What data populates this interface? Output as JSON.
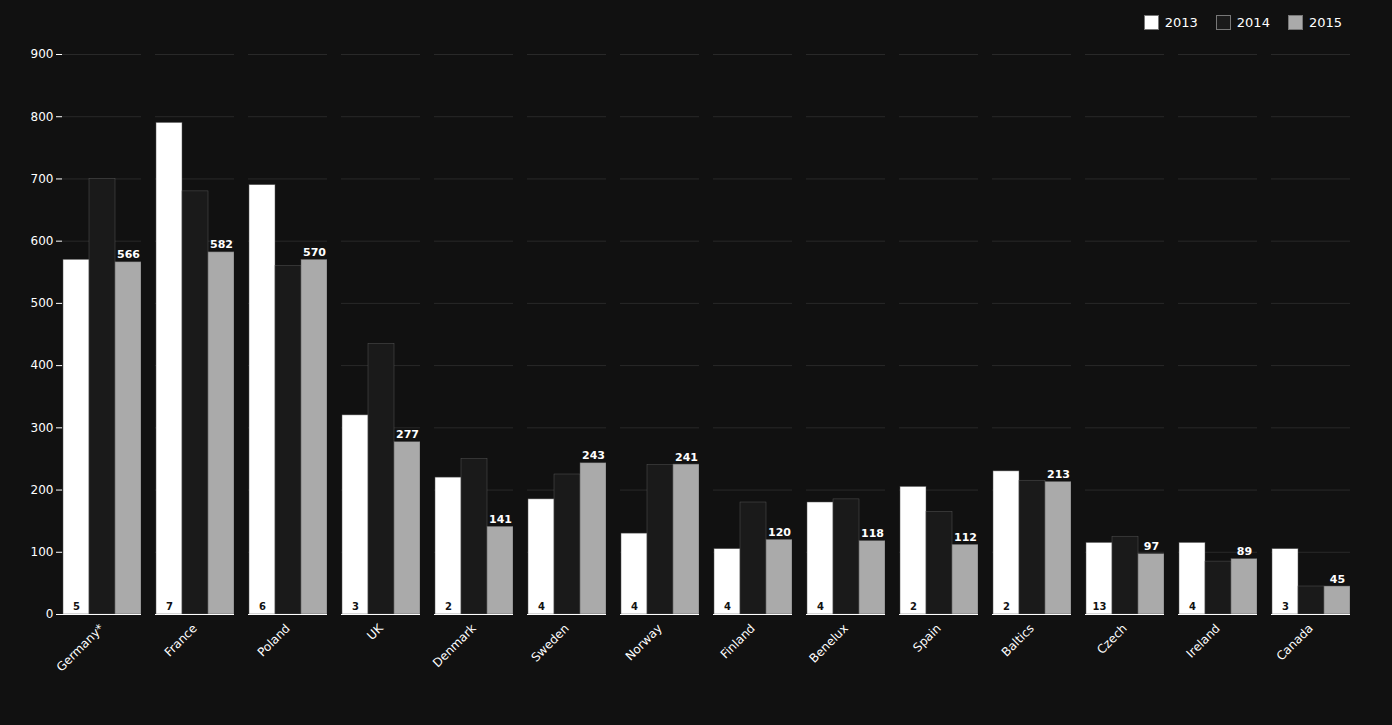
{
  "chart_data": {
    "type": "bar",
    "categories": [
      "Germany*",
      "France",
      "Poland",
      "UK",
      "Denmark",
      "Sweden",
      "Norway",
      "Finland",
      "Benelux",
      "Spain",
      "Baltics",
      "Czech",
      "Ireland",
      "Canada"
    ],
    "series": [
      {
        "name": "2013",
        "color": "#ffffff",
        "values": [
          570,
          790,
          690,
          320,
          220,
          185,
          130,
          105,
          180,
          205,
          230,
          115,
          115,
          105
        ]
      },
      {
        "name": "2014",
        "color": "#1a1a1a",
        "values": [
          700,
          680,
          560,
          435,
          250,
          225,
          240,
          180,
          185,
          165,
          215,
          125,
          85,
          45
        ]
      },
      {
        "name": "2015",
        "color": "#aaaaaa",
        "values": [
          566,
          582,
          570,
          277,
          141,
          243,
          241,
          120,
          118,
          112,
          213,
          97,
          89,
          45
        ],
        "data_labels": true
      }
    ],
    "ylim": [
      0,
      900
    ],
    "yticks": [
      0,
      100,
      200,
      300,
      400,
      500,
      600,
      700,
      800,
      900
    ],
    "grid": true,
    "legend": "upper right",
    "annotations": [
      {
        "x": "Germany*",
        "series": "2013",
        "y": 5,
        "text": "5"
      },
      {
        "x": "France",
        "series": "2013",
        "y": 5,
        "text": "7"
      },
      {
        "x": "Poland",
        "series": "2013",
        "y": 5,
        "text": "6"
      },
      {
        "x": "UK",
        "series": "2013",
        "y": 5,
        "text": "3"
      },
      {
        "x": "Denmark",
        "series": "2013",
        "y": 5,
        "text": "2"
      },
      {
        "x": "Sweden",
        "series": "2013",
        "y": 5,
        "text": "4"
      },
      {
        "x": "Norway",
        "series": "2013",
        "y": 5,
        "text": "4"
      },
      {
        "x": "Finland",
        "series": "2013",
        "y": 5,
        "text": "4"
      },
      {
        "x": "Benelux",
        "series": "2013",
        "y": 5,
        "text": "4"
      },
      {
        "x": "Spain",
        "series": "2013",
        "y": 5,
        "text": "2"
      },
      {
        "x": "Baltics",
        "series": "2013",
        "y": 5,
        "text": "2"
      },
      {
        "x": "Czech",
        "series": "2013",
        "y": 5,
        "text": "13"
      },
      {
        "x": "Ireland",
        "series": "2013",
        "y": 5,
        "text": "4"
      },
      {
        "x": "Canada",
        "series": "2013",
        "y": 5,
        "text": "3"
      }
    ]
  }
}
